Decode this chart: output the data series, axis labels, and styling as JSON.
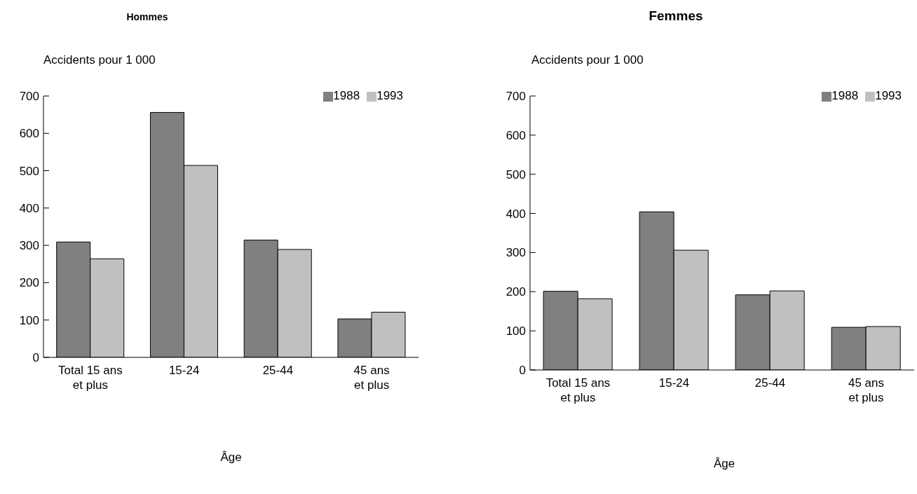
{
  "chart_data": [
    {
      "type": "bar",
      "title": "Hommes",
      "ylabel": "Accidents pour 1 000",
      "xlabel": "Âge",
      "categories": [
        "Total 15 ans\net plus",
        "15-24",
        "25-44",
        "45 ans\net plus"
      ],
      "series": [
        {
          "name": "1988",
          "color": "#808080",
          "values": [
            309,
            656,
            314,
            103
          ]
        },
        {
          "name": "1993",
          "color": "#c0c0c0",
          "values": [
            264,
            514,
            289,
            121
          ]
        }
      ],
      "ylim": [
        0,
        700
      ],
      "yticks": [
        0,
        100,
        200,
        300,
        400,
        500,
        600,
        700
      ],
      "legend": "top right"
    },
    {
      "type": "bar",
      "title": "Femmes",
      "ylabel": "Accidents pour 1 000",
      "xlabel": "Âge",
      "categories": [
        "Total 15 ans\net plus",
        "15-24",
        "25-44",
        "45 ans\net plus"
      ],
      "series": [
        {
          "name": "1988",
          "color": "#808080",
          "values": [
            201,
            404,
            192,
            109
          ]
        },
        {
          "name": "1993",
          "color": "#c0c0c0",
          "values": [
            182,
            306,
            202,
            111
          ]
        }
      ],
      "ylim": [
        0,
        700
      ],
      "yticks": [
        0,
        100,
        200,
        300,
        400,
        500,
        600,
        700
      ],
      "legend": "top right"
    }
  ]
}
